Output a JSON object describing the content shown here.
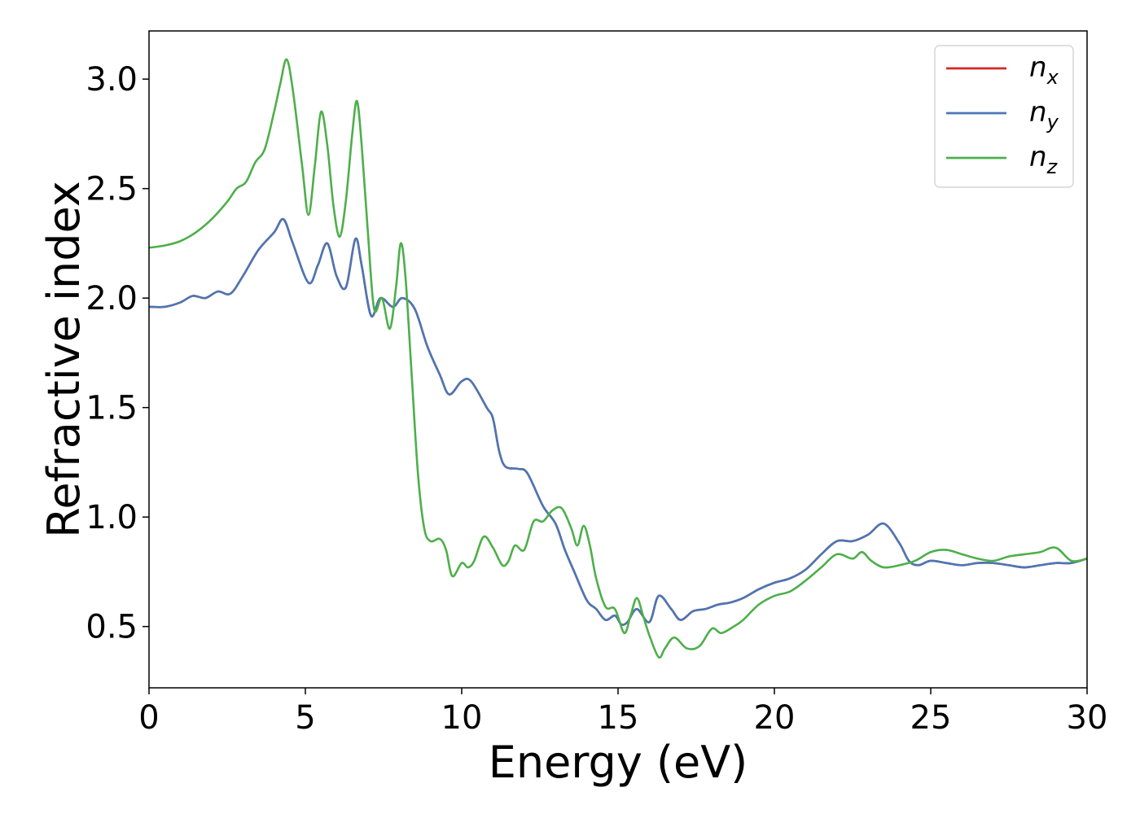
{
  "chart_data": {
    "type": "line",
    "title": "",
    "xlabel": "Energy (eV)",
    "ylabel": "Refractive index",
    "xlim": [
      0,
      30
    ],
    "ylim": [
      0.22,
      3.22
    ],
    "xticks": [
      0,
      5,
      10,
      15,
      20,
      25,
      30
    ],
    "xtick_labels": [
      "0",
      "5",
      "10",
      "15",
      "20",
      "25",
      "30"
    ],
    "yticks": [
      0.5,
      1.0,
      1.5,
      2.0,
      2.5,
      3.0
    ],
    "ytick_labels": [
      "0.5",
      "1.0",
      "1.5",
      "2.0",
      "2.5",
      "3.0"
    ],
    "grid": false,
    "legend_position": "top-right",
    "series": [
      {
        "name": "n",
        "subscript": "x",
        "color": "#d62728",
        "points": [
          [
            0,
            1.96
          ],
          [
            0.5,
            1.96
          ],
          [
            1.0,
            1.98
          ],
          [
            1.4,
            2.01
          ],
          [
            1.8,
            2.0
          ],
          [
            2.2,
            2.03
          ],
          [
            2.6,
            2.02
          ],
          [
            3.0,
            2.1
          ],
          [
            3.5,
            2.22
          ],
          [
            4.0,
            2.3
          ],
          [
            4.3,
            2.36
          ],
          [
            4.6,
            2.25
          ],
          [
            5.1,
            2.07
          ],
          [
            5.4,
            2.15
          ],
          [
            5.7,
            2.25
          ],
          [
            6.0,
            2.1
          ],
          [
            6.3,
            2.05
          ],
          [
            6.6,
            2.27
          ],
          [
            6.8,
            2.15
          ],
          [
            7.1,
            1.92
          ],
          [
            7.4,
            2.0
          ],
          [
            7.8,
            1.96
          ],
          [
            8.1,
            2.0
          ],
          [
            8.5,
            1.95
          ],
          [
            8.9,
            1.78
          ],
          [
            9.3,
            1.65
          ],
          [
            9.6,
            1.56
          ],
          [
            10.0,
            1.62
          ],
          [
            10.3,
            1.62
          ],
          [
            10.8,
            1.5
          ],
          [
            11.0,
            1.45
          ],
          [
            11.2,
            1.3
          ],
          [
            11.4,
            1.23
          ],
          [
            11.8,
            1.22
          ],
          [
            12.1,
            1.2
          ],
          [
            12.6,
            1.05
          ],
          [
            13.0,
            0.97
          ],
          [
            13.3,
            0.85
          ],
          [
            13.6,
            0.75
          ],
          [
            14.0,
            0.62
          ],
          [
            14.3,
            0.58
          ],
          [
            14.6,
            0.53
          ],
          [
            14.9,
            0.55
          ],
          [
            15.1,
            0.51
          ],
          [
            15.3,
            0.52
          ],
          [
            15.6,
            0.58
          ],
          [
            16.0,
            0.52
          ],
          [
            16.3,
            0.64
          ],
          [
            16.7,
            0.58
          ],
          [
            17.0,
            0.53
          ],
          [
            17.4,
            0.57
          ],
          [
            17.8,
            0.58
          ],
          [
            18.2,
            0.6
          ],
          [
            18.6,
            0.61
          ],
          [
            19.0,
            0.63
          ],
          [
            19.5,
            0.67
          ],
          [
            20.0,
            0.7
          ],
          [
            20.5,
            0.72
          ],
          [
            21.0,
            0.76
          ],
          [
            21.5,
            0.83
          ],
          [
            22.0,
            0.89
          ],
          [
            22.5,
            0.89
          ],
          [
            23.0,
            0.92
          ],
          [
            23.5,
            0.97
          ],
          [
            24.0,
            0.88
          ],
          [
            24.3,
            0.8
          ],
          [
            24.6,
            0.78
          ],
          [
            25.0,
            0.8
          ],
          [
            25.5,
            0.79
          ],
          [
            26.0,
            0.78
          ],
          [
            26.5,
            0.79
          ],
          [
            27.0,
            0.79
          ],
          [
            27.5,
            0.78
          ],
          [
            28.0,
            0.77
          ],
          [
            28.5,
            0.78
          ],
          [
            29.0,
            0.79
          ],
          [
            29.5,
            0.79
          ],
          [
            30.0,
            0.81
          ]
        ]
      },
      {
        "name": "n",
        "subscript": "y",
        "color": "#4a77b4",
        "points": [
          [
            0,
            1.96
          ],
          [
            0.5,
            1.96
          ],
          [
            1.0,
            1.98
          ],
          [
            1.4,
            2.01
          ],
          [
            1.8,
            2.0
          ],
          [
            2.2,
            2.03
          ],
          [
            2.6,
            2.02
          ],
          [
            3.0,
            2.1
          ],
          [
            3.5,
            2.22
          ],
          [
            4.0,
            2.3
          ],
          [
            4.3,
            2.36
          ],
          [
            4.6,
            2.25
          ],
          [
            5.1,
            2.07
          ],
          [
            5.4,
            2.15
          ],
          [
            5.7,
            2.25
          ],
          [
            6.0,
            2.1
          ],
          [
            6.3,
            2.05
          ],
          [
            6.6,
            2.27
          ],
          [
            6.8,
            2.15
          ],
          [
            7.1,
            1.92
          ],
          [
            7.4,
            2.0
          ],
          [
            7.8,
            1.96
          ],
          [
            8.1,
            2.0
          ],
          [
            8.5,
            1.95
          ],
          [
            8.9,
            1.78
          ],
          [
            9.3,
            1.65
          ],
          [
            9.6,
            1.56
          ],
          [
            10.0,
            1.62
          ],
          [
            10.3,
            1.62
          ],
          [
            10.8,
            1.5
          ],
          [
            11.0,
            1.45
          ],
          [
            11.2,
            1.3
          ],
          [
            11.4,
            1.23
          ],
          [
            11.8,
            1.22
          ],
          [
            12.1,
            1.2
          ],
          [
            12.6,
            1.05
          ],
          [
            13.0,
            0.97
          ],
          [
            13.3,
            0.85
          ],
          [
            13.6,
            0.75
          ],
          [
            14.0,
            0.62
          ],
          [
            14.3,
            0.58
          ],
          [
            14.6,
            0.53
          ],
          [
            14.9,
            0.55
          ],
          [
            15.1,
            0.51
          ],
          [
            15.3,
            0.52
          ],
          [
            15.6,
            0.58
          ],
          [
            16.0,
            0.52
          ],
          [
            16.3,
            0.64
          ],
          [
            16.7,
            0.58
          ],
          [
            17.0,
            0.53
          ],
          [
            17.4,
            0.57
          ],
          [
            17.8,
            0.58
          ],
          [
            18.2,
            0.6
          ],
          [
            18.6,
            0.61
          ],
          [
            19.0,
            0.63
          ],
          [
            19.5,
            0.67
          ],
          [
            20.0,
            0.7
          ],
          [
            20.5,
            0.72
          ],
          [
            21.0,
            0.76
          ],
          [
            21.5,
            0.83
          ],
          [
            22.0,
            0.89
          ],
          [
            22.5,
            0.89
          ],
          [
            23.0,
            0.92
          ],
          [
            23.5,
            0.97
          ],
          [
            24.0,
            0.88
          ],
          [
            24.3,
            0.8
          ],
          [
            24.6,
            0.78
          ],
          [
            25.0,
            0.8
          ],
          [
            25.5,
            0.79
          ],
          [
            26.0,
            0.78
          ],
          [
            26.5,
            0.79
          ],
          [
            27.0,
            0.79
          ],
          [
            27.5,
            0.78
          ],
          [
            28.0,
            0.77
          ],
          [
            28.5,
            0.78
          ],
          [
            29.0,
            0.79
          ],
          [
            29.5,
            0.79
          ],
          [
            30.0,
            0.81
          ]
        ]
      },
      {
        "name": "n",
        "subscript": "z",
        "color": "#4daf4a",
        "points": [
          [
            0,
            2.23
          ],
          [
            0.5,
            2.24
          ],
          [
            1.0,
            2.26
          ],
          [
            1.5,
            2.3
          ],
          [
            2.0,
            2.36
          ],
          [
            2.5,
            2.44
          ],
          [
            2.8,
            2.5
          ],
          [
            3.1,
            2.53
          ],
          [
            3.4,
            2.62
          ],
          [
            3.7,
            2.68
          ],
          [
            4.0,
            2.85
          ],
          [
            4.2,
            2.98
          ],
          [
            4.4,
            3.09
          ],
          [
            4.6,
            2.95
          ],
          [
            4.9,
            2.6
          ],
          [
            5.1,
            2.38
          ],
          [
            5.3,
            2.6
          ],
          [
            5.5,
            2.85
          ],
          [
            5.7,
            2.7
          ],
          [
            5.9,
            2.42
          ],
          [
            6.1,
            2.28
          ],
          [
            6.3,
            2.45
          ],
          [
            6.5,
            2.75
          ],
          [
            6.65,
            2.9
          ],
          [
            6.8,
            2.7
          ],
          [
            7.0,
            2.3
          ],
          [
            7.2,
            1.95
          ],
          [
            7.45,
            2.0
          ],
          [
            7.7,
            1.86
          ],
          [
            7.9,
            2.05
          ],
          [
            8.05,
            2.25
          ],
          [
            8.2,
            2.1
          ],
          [
            8.4,
            1.65
          ],
          [
            8.6,
            1.2
          ],
          [
            8.8,
            0.95
          ],
          [
            9.0,
            0.89
          ],
          [
            9.3,
            0.9
          ],
          [
            9.5,
            0.85
          ],
          [
            9.7,
            0.73
          ],
          [
            10.0,
            0.79
          ],
          [
            10.2,
            0.77
          ],
          [
            10.4,
            0.8
          ],
          [
            10.7,
            0.91
          ],
          [
            11.0,
            0.86
          ],
          [
            11.3,
            0.78
          ],
          [
            11.5,
            0.8
          ],
          [
            11.7,
            0.87
          ],
          [
            12.0,
            0.85
          ],
          [
            12.3,
            0.98
          ],
          [
            12.6,
            0.98
          ],
          [
            12.9,
            1.03
          ],
          [
            13.2,
            1.04
          ],
          [
            13.5,
            0.95
          ],
          [
            13.7,
            0.87
          ],
          [
            13.9,
            0.96
          ],
          [
            14.1,
            0.87
          ],
          [
            14.3,
            0.72
          ],
          [
            14.6,
            0.59
          ],
          [
            14.9,
            0.58
          ],
          [
            15.2,
            0.47
          ],
          [
            15.4,
            0.55
          ],
          [
            15.6,
            0.63
          ],
          [
            15.8,
            0.55
          ],
          [
            16.0,
            0.46
          ],
          [
            16.3,
            0.36
          ],
          [
            16.5,
            0.4
          ],
          [
            16.8,
            0.45
          ],
          [
            17.2,
            0.4
          ],
          [
            17.6,
            0.41
          ],
          [
            18.0,
            0.49
          ],
          [
            18.3,
            0.47
          ],
          [
            18.7,
            0.5
          ],
          [
            19.0,
            0.53
          ],
          [
            19.5,
            0.6
          ],
          [
            20.0,
            0.64
          ],
          [
            20.5,
            0.66
          ],
          [
            21.0,
            0.71
          ],
          [
            21.5,
            0.77
          ],
          [
            22.0,
            0.83
          ],
          [
            22.5,
            0.81
          ],
          [
            22.8,
            0.84
          ],
          [
            23.1,
            0.8
          ],
          [
            23.5,
            0.77
          ],
          [
            24.0,
            0.78
          ],
          [
            24.5,
            0.8
          ],
          [
            25.0,
            0.84
          ],
          [
            25.5,
            0.85
          ],
          [
            26.0,
            0.83
          ],
          [
            26.5,
            0.81
          ],
          [
            27.0,
            0.8
          ],
          [
            27.5,
            0.82
          ],
          [
            28.0,
            0.83
          ],
          [
            28.5,
            0.84
          ],
          [
            29.0,
            0.86
          ],
          [
            29.5,
            0.8
          ],
          [
            30.0,
            0.81
          ]
        ]
      }
    ]
  }
}
